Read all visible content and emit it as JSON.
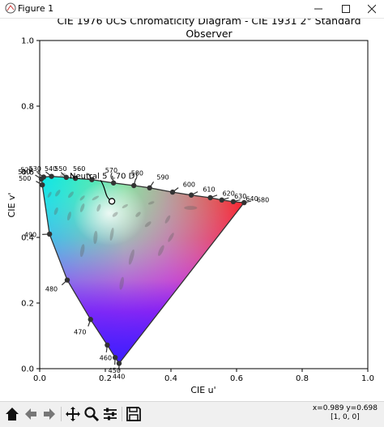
{
  "window": {
    "title": "Figure 1",
    "minimize_icon": "minimize-icon",
    "maximize_icon": "maximize-icon",
    "close_icon": "close-icon"
  },
  "plot": {
    "title_line1": "CIE 1976 UCS Chromaticity Diagram - CIE 1931 2° Standard",
    "title_line2": "Observer",
    "xlabel": "CIE u'",
    "ylabel": "CIE v'",
    "xlim": [
      0.0,
      1.0
    ],
    "ylim": [
      0.0,
      1.0
    ],
    "x_ticks": [
      "0.0",
      "0.2",
      "0.4",
      "0.6",
      "0.8",
      "1.0"
    ],
    "y_ticks": [
      "0.0",
      "0.2",
      "0.4",
      "0.6",
      "0.8",
      "1.0"
    ],
    "annotation": "Neutral 5 (.70 D)"
  },
  "chart_data": {
    "type": "scatter",
    "title": "CIE 1976 UCS Chromaticity Diagram - CIE 1931 2° Standard Observer",
    "xlabel": "CIE u'",
    "ylabel": "CIE v'",
    "xlim": [
      0.0,
      1.0
    ],
    "ylim": [
      0.0,
      1.0
    ],
    "spectral_locus": [
      {
        "label": "440",
        "u": 0.242,
        "v": 0.016
      },
      {
        "label": "450",
        "u": 0.23,
        "v": 0.034
      },
      {
        "label": "460",
        "u": 0.206,
        "v": 0.072
      },
      {
        "label": "470",
        "u": 0.155,
        "v": 0.15
      },
      {
        "label": "480",
        "u": 0.084,
        "v": 0.27
      },
      {
        "label": "490",
        "u": 0.03,
        "v": 0.41
      },
      {
        "label": "500",
        "u": 0.008,
        "v": 0.56
      },
      {
        "label": "510",
        "u": 0.005,
        "v": 0.578
      },
      {
        "label": "520",
        "u": 0.012,
        "v": 0.584
      },
      {
        "label": "530",
        "u": 0.036,
        "v": 0.586
      },
      {
        "label": "540",
        "u": 0.081,
        "v": 0.583
      },
      {
        "label": "550",
        "u": 0.109,
        "v": 0.58
      },
      {
        "label": "560",
        "u": 0.159,
        "v": 0.576
      },
      {
        "label": "570",
        "u": 0.225,
        "v": 0.566
      },
      {
        "label": "580",
        "u": 0.287,
        "v": 0.558
      },
      {
        "label": "590",
        "u": 0.335,
        "v": 0.551
      },
      {
        "label": "600",
        "u": 0.405,
        "v": 0.538
      },
      {
        "label": "610",
        "u": 0.462,
        "v": 0.529
      },
      {
        "label": "620",
        "u": 0.52,
        "v": 0.521
      },
      {
        "label": "630",
        "u": 0.555,
        "v": 0.514
      },
      {
        "label": "640",
        "u": 0.59,
        "v": 0.509
      },
      {
        "label": "680",
        "u": 0.623,
        "v": 0.506
      }
    ],
    "neutral_point": {
      "label": "Neutral 5 (.70 D)",
      "u": 0.22,
      "v": 0.51
    },
    "macadam_ellipses": [
      {
        "u": 0.03,
        "v": 0.53,
        "a": 0.01,
        "b": 0.004,
        "angle": -60
      },
      {
        "u": 0.055,
        "v": 0.535,
        "a": 0.012,
        "b": 0.005,
        "angle": -55
      },
      {
        "u": 0.095,
        "v": 0.53,
        "a": 0.012,
        "b": 0.005,
        "angle": -50
      },
      {
        "u": 0.13,
        "v": 0.52,
        "a": 0.01,
        "b": 0.004,
        "angle": -45
      },
      {
        "u": 0.17,
        "v": 0.52,
        "a": 0.012,
        "b": 0.004,
        "angle": -30
      },
      {
        "u": 0.18,
        "v": 0.49,
        "a": 0.012,
        "b": 0.005,
        "angle": -70
      },
      {
        "u": 0.23,
        "v": 0.47,
        "a": 0.01,
        "b": 0.005,
        "angle": -40
      },
      {
        "u": 0.26,
        "v": 0.495,
        "a": 0.01,
        "b": 0.004,
        "angle": -30
      },
      {
        "u": 0.3,
        "v": 0.47,
        "a": 0.01,
        "b": 0.005,
        "angle": -45
      },
      {
        "u": 0.34,
        "v": 0.505,
        "a": 0.01,
        "b": 0.004,
        "angle": -20
      },
      {
        "u": 0.33,
        "v": 0.44,
        "a": 0.012,
        "b": 0.005,
        "angle": -40
      },
      {
        "u": 0.46,
        "v": 0.49,
        "a": 0.02,
        "b": 0.006,
        "angle": 0
      },
      {
        "u": 0.39,
        "v": 0.455,
        "a": 0.014,
        "b": 0.005,
        "angle": -60
      },
      {
        "u": 0.4,
        "v": 0.4,
        "a": 0.016,
        "b": 0.005,
        "angle": -60
      },
      {
        "u": 0.37,
        "v": 0.36,
        "a": 0.018,
        "b": 0.006,
        "angle": -65
      },
      {
        "u": 0.28,
        "v": 0.34,
        "a": 0.024,
        "b": 0.006,
        "angle": -75
      },
      {
        "u": 0.22,
        "v": 0.41,
        "a": 0.02,
        "b": 0.005,
        "angle": -80
      },
      {
        "u": 0.17,
        "v": 0.4,
        "a": 0.02,
        "b": 0.006,
        "angle": -85
      },
      {
        "u": 0.09,
        "v": 0.465,
        "a": 0.014,
        "b": 0.005,
        "angle": -75
      },
      {
        "u": 0.05,
        "v": 0.48,
        "a": 0.012,
        "b": 0.005,
        "angle": -70
      },
      {
        "u": 0.13,
        "v": 0.49,
        "a": 0.014,
        "b": 0.005,
        "angle": -70
      },
      {
        "u": 0.13,
        "v": 0.36,
        "a": 0.02,
        "b": 0.006,
        "angle": -80
      },
      {
        "u": 0.07,
        "v": 0.59,
        "a": 0.01,
        "b": 0.005,
        "angle": -30
      },
      {
        "u": 0.25,
        "v": 0.26,
        "a": 0.02,
        "b": 0.006,
        "angle": -80
      }
    ]
  },
  "toolbar": {
    "buttons": [
      "home-icon",
      "back-icon",
      "forward-icon",
      "pan-icon",
      "zoom-icon",
      "configure-icon",
      "save-icon"
    ],
    "coords_line1": "x=0.989 y=0.698",
    "coords_line2": "[1, 0, 0]"
  }
}
